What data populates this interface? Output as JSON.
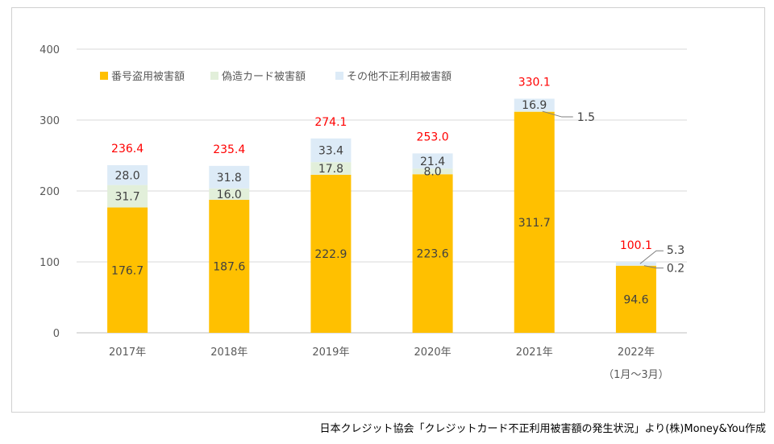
{
  "chart_data": {
    "type": "bar",
    "stacked": true,
    "categories": [
      "2017年",
      "2018年",
      "2019年",
      "2020年",
      "2021年",
      "2022年"
    ],
    "category_sublabels": [
      "",
      "",
      "",
      "",
      "",
      "（1月～3月）"
    ],
    "series": [
      {
        "name": "番号盗用被害額",
        "color": "#FFC000",
        "values": [
          176.7,
          187.6,
          222.9,
          223.6,
          311.7,
          94.6
        ],
        "labels": [
          "176.7",
          "187.6",
          "222.9",
          "223.6",
          "311.7",
          "94.6"
        ]
      },
      {
        "name": "偽造カード被害額",
        "color": "#E2EFDA",
        "values": [
          31.7,
          16.0,
          17.8,
          8.0,
          1.5,
          0.2
        ],
        "labels": [
          "31.7",
          "16.0",
          "17.8",
          "8.0",
          "1.5",
          "0.2"
        ]
      },
      {
        "name": "その他不正利用被害額",
        "color": "#DDEBF7",
        "values": [
          28.0,
          31.8,
          33.4,
          21.4,
          16.9,
          5.3
        ],
        "labels": [
          "28.0",
          "31.8",
          "33.4",
          "21.4",
          "16.9",
          "5.3"
        ]
      }
    ],
    "totals": [
      236.4,
      235.4,
      274.1,
      253.0,
      330.1,
      100.1
    ],
    "total_labels": [
      "236.4",
      "235.4",
      "274.1",
      "253.0",
      "330.1",
      "100.1"
    ],
    "total_color": "#FF0000",
    "ylim": [
      0,
      400
    ],
    "yticks": [
      0,
      100,
      200,
      300,
      400
    ],
    "ytick_labels": [
      "0",
      "100",
      "200",
      "300",
      "400"
    ],
    "grid": true,
    "legend_position": "top-left",
    "title": "",
    "xlabel": "",
    "ylabel": ""
  },
  "source_note": "日本クレジット協会「クレジットカード不正利用被害額の発生状況」より(株)Money&You作成"
}
